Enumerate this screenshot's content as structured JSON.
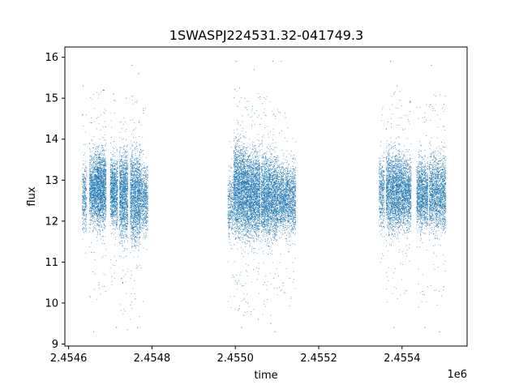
{
  "chart_data": {
    "type": "scatter",
    "title": "1SWASPJ224531.32-041749.3",
    "xlabel": "time",
    "ylabel": "flux",
    "x_offset_label": "1e6",
    "xlim": [
      2454591,
      2455556
    ],
    "ylim": [
      8.95,
      16.25
    ],
    "x_ticks": [
      2454600,
      2454800,
      2455000,
      2455200,
      2455400
    ],
    "x_tick_labels": [
      "2.4546",
      "2.4548",
      "2.4550",
      "2.4552",
      "2.4554"
    ],
    "y_ticks": [
      9,
      10,
      11,
      12,
      13,
      14,
      15,
      16
    ],
    "y_tick_labels": [
      "9",
      "10",
      "11",
      "12",
      "13",
      "14",
      "15",
      "16"
    ],
    "grid": false,
    "marker_color": "#1f77b4",
    "series": [
      {
        "segments": [
          {
            "x_start": 2454633,
            "x_end": 2454643,
            "y_low": 11.6,
            "y_high": 13.6,
            "density": 300,
            "outliers": [
              [
                2454635,
                15.3
              ],
              [
                2454634,
                14.6
              ]
            ]
          },
          {
            "x_start": 2454650,
            "x_end": 2454668,
            "y_low": 11.7,
            "y_high": 13.9,
            "density": 900,
            "outliers": [
              [
                2454655,
                14.4
              ],
              [
                2454660,
                9.3
              ]
            ]
          },
          {
            "x_start": 2454668,
            "x_end": 2454690,
            "y_low": 11.6,
            "y_high": 14.0,
            "density": 1400,
            "outliers": [
              [
                2454683,
                15.2
              ],
              [
                2454689,
                14.3
              ]
            ]
          },
          {
            "x_start": 2454700,
            "x_end": 2454718,
            "y_low": 11.6,
            "y_high": 13.8,
            "density": 900,
            "outliers": [
              [
                2454708,
                15.1
              ],
              [
                2454715,
                9.4
              ]
            ]
          },
          {
            "x_start": 2454722,
            "x_end": 2454742,
            "y_low": 11.3,
            "y_high": 14.0,
            "density": 1200,
            "outliers": [
              [
                2454730,
                10.5
              ],
              [
                2454735,
                9.8
              ],
              [
                2454738,
                15.0
              ],
              [
                2454741,
                9.35
              ]
            ]
          },
          {
            "x_start": 2454748,
            "x_end": 2454772,
            "y_low": 11.2,
            "y_high": 14.0,
            "density": 1400,
            "outliers": [
              [
                2454752,
                15.8
              ],
              [
                2454760,
                10.1
              ],
              [
                2454765,
                9.4
              ],
              [
                2454768,
                15.6
              ]
            ]
          },
          {
            "x_start": 2454772,
            "x_end": 2454790,
            "y_low": 11.5,
            "y_high": 13.6,
            "density": 600,
            "outliers": [
              [
                2454780,
                14.7
              ]
            ]
          },
          {
            "x_start": 2454982,
            "x_end": 2454995,
            "y_low": 11.3,
            "y_high": 13.5,
            "density": 300,
            "outliers": []
          },
          {
            "x_start": 2454996,
            "x_end": 2455022,
            "y_low": 11.4,
            "y_high": 14.2,
            "density": 1600,
            "outliers": [
              [
                2455002,
                15.9
              ],
              [
                2455005,
                14.8
              ],
              [
                2455015,
                9.4
              ],
              [
                2455020,
                9.7
              ]
            ]
          },
          {
            "x_start": 2455022,
            "x_end": 2455060,
            "y_low": 11.3,
            "y_high": 14.0,
            "density": 2200,
            "outliers": [
              [
                2455030,
                10.0
              ],
              [
                2455045,
                15.7
              ],
              [
                2455055,
                9.6
              ]
            ]
          },
          {
            "x_start": 2455062,
            "x_end": 2455100,
            "y_low": 11.3,
            "y_high": 13.9,
            "density": 2000,
            "outliers": [
              [
                2455085,
                9.5
              ],
              [
                2455090,
                15.9
              ],
              [
                2455095,
                9.3
              ]
            ]
          },
          {
            "x_start": 2455100,
            "x_end": 2455145,
            "y_low": 11.5,
            "y_high": 13.6,
            "density": 1700,
            "outliers": [
              [
                2455110,
                15.9
              ],
              [
                2455130,
                10.6
              ]
            ]
          },
          {
            "x_start": 2455345,
            "x_end": 2455358,
            "y_low": 11.6,
            "y_high": 13.8,
            "density": 400,
            "outliers": []
          },
          {
            "x_start": 2455362,
            "x_end": 2455395,
            "y_low": 11.5,
            "y_high": 14.0,
            "density": 1700,
            "outliers": [
              [
                2455372,
                15.9
              ],
              [
                2455380,
                9.4
              ],
              [
                2455388,
                15.3
              ]
            ]
          },
          {
            "x_start": 2455395,
            "x_end": 2455422,
            "y_low": 11.6,
            "y_high": 13.8,
            "density": 1200,
            "outliers": [
              [
                2455410,
                10.3
              ],
              [
                2455420,
                14.9
              ]
            ]
          },
          {
            "x_start": 2455435,
            "x_end": 2455462,
            "y_low": 11.6,
            "y_high": 13.7,
            "density": 1200,
            "outliers": [
              [
                2455440,
                9.9
              ],
              [
                2455455,
                9.4
              ]
            ]
          },
          {
            "x_start": 2455465,
            "x_end": 2455505,
            "y_low": 11.5,
            "y_high": 13.9,
            "density": 1600,
            "outliers": [
              [
                2455470,
                15.8
              ],
              [
                2455490,
                9.3
              ],
              [
                2455500,
                10.4
              ]
            ]
          }
        ]
      }
    ]
  }
}
